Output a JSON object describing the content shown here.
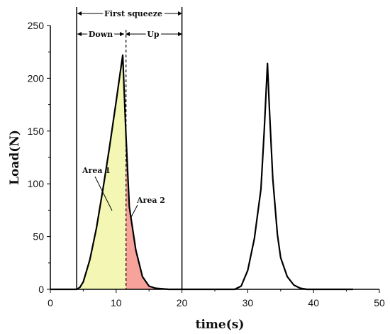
{
  "chart_data": {
    "type": "line",
    "xlabel": "time(s)",
    "ylabel": "Load(N)",
    "xlim": [
      0,
      50
    ],
    "ylim": [
      0,
      250
    ],
    "x_ticks": [
      0,
      10,
      20,
      30,
      40,
      50
    ],
    "y_ticks": [
      0,
      50,
      100,
      150,
      200,
      250
    ],
    "grid": false,
    "series": [
      {
        "x": [
          0,
          2,
          4,
          4.5,
          5,
          6,
          7,
          8,
          9,
          10,
          10.5,
          11,
          11.5,
          12,
          13,
          14,
          15,
          16,
          18,
          20,
          25,
          28,
          29,
          30,
          31,
          32,
          32.5,
          33,
          33.3,
          33.8,
          34.5,
          35,
          36,
          37,
          38,
          39,
          40,
          46
        ],
        "y": [
          0,
          0,
          0,
          2,
          7,
          28,
          58,
          95,
          135,
          178,
          200,
          222,
          145,
          78,
          37,
          12,
          3,
          1,
          0,
          0,
          0,
          0,
          3,
          18,
          48,
          95,
          150,
          214,
          170,
          105,
          52,
          30,
          12,
          4,
          1,
          0,
          0,
          0
        ]
      }
    ],
    "annotations": {
      "first_squeeze": "First squeeze",
      "down": "Down",
      "up": "Up",
      "area1": "Area 1",
      "area2": "Area 2"
    },
    "markers": {
      "vline_start": 4,
      "vline_peak": 11.5,
      "vline_end": 20
    },
    "colors": {
      "line": "#000000",
      "area1": "#f3f7b3",
      "area2": "#f7a39b"
    }
  }
}
